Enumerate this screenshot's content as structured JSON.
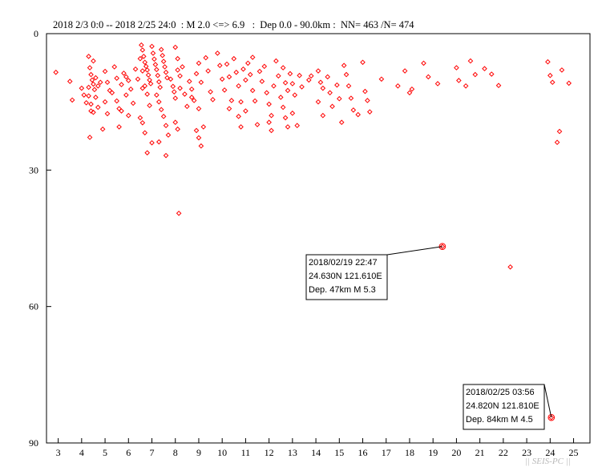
{
  "header": {
    "title": "2018 2/3 0:0 -- 2018 2/25 24:0  : M 2.0 <=> 6.9   :  Dep 0.0 - 90.0km :  NN= 463 /N= 474"
  },
  "watermark": "|| SEIS-PC ||",
  "colors": {
    "marker": "#ff0000",
    "axis": "#000000",
    "watermark": "#b8b8b8"
  },
  "chart_data": {
    "type": "scatter",
    "title": "2018 2/3 0:0 -- 2018 2/25 24:0  : M 2.0 <=> 6.9   :  Dep 0.0 - 90.0km :  NN= 463 /N= 474",
    "xlabel": "",
    "ylabel": "",
    "xlim": [
      2.5,
      25.7
    ],
    "ylim": [
      0,
      90
    ],
    "y_inverted": true,
    "x_ticks": [
      3,
      4,
      5,
      6,
      7,
      8,
      9,
      10,
      11,
      12,
      13,
      14,
      15,
      16,
      17,
      18,
      19,
      20,
      21,
      22,
      23,
      24,
      25
    ],
    "y_ticks": [
      0,
      30,
      60,
      90
    ],
    "grid": false,
    "series": [
      {
        "points": [
          [
            2.9,
            8.5
          ],
          [
            3.5,
            10.5
          ],
          [
            3.6,
            14.6
          ],
          [
            4.0,
            12.0
          ],
          [
            4.1,
            13.5
          ],
          [
            4.2,
            15.2
          ],
          [
            4.3,
            5.0
          ],
          [
            4.35,
            7.5
          ],
          [
            4.4,
            9.0
          ],
          [
            4.45,
            10.2
          ],
          [
            4.5,
            11.1
          ],
          [
            4.55,
            12.3
          ],
          [
            4.3,
            13.7
          ],
          [
            4.4,
            15.5
          ],
          [
            4.5,
            17.3
          ],
          [
            4.35,
            22.8
          ],
          [
            4.5,
            6.0
          ],
          [
            4.6,
            9.7
          ],
          [
            4.7,
            11.5
          ],
          [
            4.8,
            10.7
          ],
          [
            4.6,
            14.0
          ],
          [
            4.7,
            16.2
          ],
          [
            4.4,
            17.0
          ],
          [
            4.3,
            11.8
          ],
          [
            5.0,
            8.3
          ],
          [
            5.1,
            10.7
          ],
          [
            5.2,
            12.5
          ],
          [
            5.0,
            15.0
          ],
          [
            5.3,
            13.0
          ],
          [
            5.5,
            14.8
          ],
          [
            5.6,
            16.5
          ],
          [
            5.1,
            17.6
          ],
          [
            5.4,
            7.3
          ],
          [
            5.5,
            9.8
          ],
          [
            5.7,
            11.2
          ],
          [
            5.8,
            8.7
          ],
          [
            6.0,
            10.3
          ],
          [
            5.9,
            13.5
          ],
          [
            6.1,
            12.2
          ],
          [
            6.2,
            15.3
          ],
          [
            5.7,
            17.0
          ],
          [
            6.0,
            18.0
          ],
          [
            6.3,
            7.8
          ],
          [
            6.4,
            10.0
          ],
          [
            6.5,
            5.5
          ],
          [
            6.6,
            8.2
          ],
          [
            6.7,
            11.5
          ],
          [
            6.8,
            13.3
          ],
          [
            6.9,
            15.8
          ],
          [
            6.5,
            18.5
          ],
          [
            6.6,
            19.6
          ],
          [
            6.7,
            21.8
          ],
          [
            6.8,
            26.2
          ],
          [
            6.55,
            2.5
          ],
          [
            6.6,
            3.6
          ],
          [
            6.65,
            5.0
          ],
          [
            6.7,
            6.3
          ],
          [
            6.75,
            7.2
          ],
          [
            6.8,
            8.0
          ],
          [
            6.85,
            9.1
          ],
          [
            6.9,
            10.2
          ],
          [
            6.95,
            11.0
          ],
          [
            7.0,
            2.8
          ],
          [
            7.05,
            4.3
          ],
          [
            7.1,
            5.6
          ],
          [
            7.15,
            6.8
          ],
          [
            7.2,
            7.9
          ],
          [
            7.25,
            9.2
          ],
          [
            7.3,
            10.6
          ],
          [
            7.35,
            11.8
          ],
          [
            7.4,
            3.5
          ],
          [
            7.45,
            4.8
          ],
          [
            7.5,
            6.1
          ],
          [
            7.55,
            7.3
          ],
          [
            7.6,
            8.5
          ],
          [
            7.65,
            9.7
          ],
          [
            7.2,
            13.5
          ],
          [
            7.3,
            15.0
          ],
          [
            7.4,
            16.7
          ],
          [
            7.5,
            18.2
          ],
          [
            7.6,
            20.2
          ],
          [
            7.7,
            22.3
          ],
          [
            7.3,
            23.8
          ],
          [
            7.6,
            26.8
          ],
          [
            7.8,
            10.0
          ],
          [
            7.9,
            11.6
          ],
          [
            7.95,
            12.8
          ],
          [
            8.0,
            14.2
          ],
          [
            8.1,
            8.0
          ],
          [
            8.2,
            9.3
          ],
          [
            8.0,
            3.0
          ],
          [
            8.1,
            5.5
          ],
          [
            8.2,
            12.0
          ],
          [
            8.3,
            7.3
          ],
          [
            8.4,
            13.3
          ],
          [
            8.5,
            16.0
          ],
          [
            8.6,
            10.5
          ],
          [
            8.7,
            12.2
          ],
          [
            8.8,
            14.7
          ],
          [
            8.0,
            19.5
          ],
          [
            8.1,
            21.0
          ],
          [
            8.15,
            39.5
          ],
          [
            8.9,
            8.8
          ],
          [
            9.0,
            6.5
          ],
          [
            9.1,
            10.7
          ],
          [
            8.9,
            21.3
          ],
          [
            9.0,
            22.9
          ],
          [
            9.1,
            24.7
          ],
          [
            9.2,
            20.5
          ],
          [
            9.3,
            5.3
          ],
          [
            9.4,
            8.2
          ],
          [
            9.5,
            12.8
          ],
          [
            9.6,
            14.5
          ],
          [
            9.8,
            4.3
          ],
          [
            9.9,
            7.0
          ],
          [
            10.0,
            10.0
          ],
          [
            10.1,
            12.4
          ],
          [
            10.2,
            6.7
          ],
          [
            10.3,
            9.5
          ],
          [
            10.4,
            14.7
          ],
          [
            10.5,
            5.5
          ],
          [
            10.6,
            8.5
          ],
          [
            10.7,
            11.5
          ],
          [
            10.8,
            15.0
          ],
          [
            10.9,
            7.8
          ],
          [
            11.0,
            10.2
          ],
          [
            10.7,
            18.2
          ],
          [
            10.8,
            20.5
          ],
          [
            11.1,
            6.5
          ],
          [
            11.2,
            9.0
          ],
          [
            11.3,
            12.5
          ],
          [
            11.4,
            14.8
          ],
          [
            11.0,
            17.0
          ],
          [
            11.5,
            20.0
          ],
          [
            11.6,
            8.3
          ],
          [
            11.7,
            10.5
          ],
          [
            11.8,
            7.2
          ],
          [
            11.9,
            13.0
          ],
          [
            12.0,
            15.5
          ],
          [
            12.1,
            18.0
          ],
          [
            12.2,
            11.5
          ],
          [
            12.3,
            6.0
          ],
          [
            12.4,
            9.3
          ],
          [
            12.5,
            14.0
          ],
          [
            12.0,
            19.5
          ],
          [
            12.1,
            21.3
          ],
          [
            12.6,
            7.5
          ],
          [
            12.7,
            10.8
          ],
          [
            12.8,
            12.5
          ],
          [
            12.6,
            16.2
          ],
          [
            12.7,
            18.5
          ],
          [
            12.8,
            20.5
          ],
          [
            12.9,
            8.8
          ],
          [
            13.0,
            11.0
          ],
          [
            13.1,
            13.5
          ],
          [
            13.2,
            20.2
          ],
          [
            13.3,
            9.2
          ],
          [
            13.4,
            11.7
          ],
          [
            13.7,
            10.2
          ],
          [
            13.8,
            9.3
          ],
          [
            14.1,
            8.2
          ],
          [
            14.2,
            10.7
          ],
          [
            14.3,
            12.0
          ],
          [
            14.1,
            15.0
          ],
          [
            14.3,
            18.0
          ],
          [
            14.5,
            9.5
          ],
          [
            14.6,
            13.0
          ],
          [
            14.7,
            16.0
          ],
          [
            14.9,
            11.3
          ],
          [
            15.0,
            14.3
          ],
          [
            15.1,
            19.5
          ],
          [
            15.3,
            9.0
          ],
          [
            15.4,
            11.5
          ],
          [
            15.5,
            14.2
          ],
          [
            15.6,
            16.8
          ],
          [
            15.8,
            17.8
          ],
          [
            16.0,
            6.3
          ],
          [
            16.1,
            12.7
          ],
          [
            16.2,
            14.7
          ],
          [
            16.3,
            17.2
          ],
          [
            16.8,
            10.0
          ],
          [
            17.5,
            11.5
          ],
          [
            17.8,
            8.2
          ],
          [
            18.0,
            13.0
          ],
          [
            18.1,
            12.2
          ],
          [
            18.6,
            6.5
          ],
          [
            18.8,
            9.5
          ],
          [
            19.2,
            11.0
          ],
          [
            19.4,
            46.8
          ],
          [
            20.0,
            7.5
          ],
          [
            20.1,
            10.3
          ],
          [
            20.4,
            11.5
          ],
          [
            20.6,
            6.0
          ],
          [
            20.8,
            9.0
          ],
          [
            21.2,
            7.7
          ],
          [
            21.5,
            8.9
          ],
          [
            21.8,
            11.4
          ],
          [
            22.3,
            51.3
          ],
          [
            23.9,
            6.2
          ],
          [
            24.0,
            9.2
          ],
          [
            24.05,
            84.4
          ],
          [
            24.1,
            10.7
          ],
          [
            24.3,
            23.9
          ],
          [
            24.4,
            21.5
          ],
          [
            24.5,
            8.0
          ],
          [
            24.8,
            10.9
          ],
          [
            5.9,
            9.5
          ],
          [
            6.6,
            12.0
          ],
          [
            8.7,
            14.0
          ],
          [
            9.0,
            16.5
          ],
          [
            4.9,
            21.0
          ],
          [
            5.6,
            20.5
          ],
          [
            7.0,
            24.0
          ],
          [
            10.3,
            16.5
          ],
          [
            11.3,
            5.2
          ],
          [
            13.0,
            17.5
          ],
          [
            15.2,
            7.0
          ]
        ]
      }
    ],
    "annotations": [
      {
        "lines": [
          "2018/02/19 22:47",
          "24.630N  121.610E",
          "Dep. 47km    M 5.3"
        ],
        "point": [
          19.4,
          46.8
        ]
      },
      {
        "lines": [
          "2018/02/25 03:56",
          "24.820N  121.810E",
          "Dep. 84km    M 4.5"
        ],
        "point": [
          24.05,
          84.4
        ]
      }
    ]
  }
}
